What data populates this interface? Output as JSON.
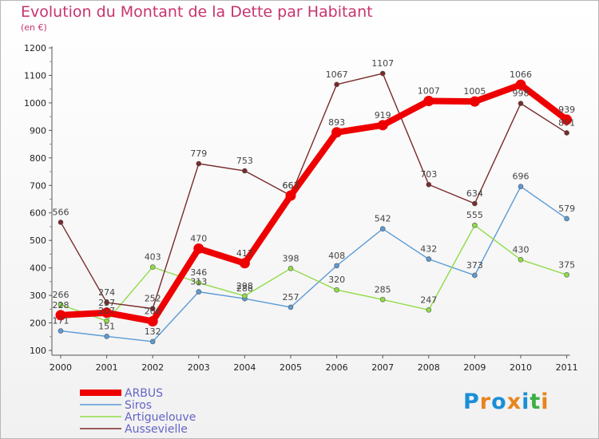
{
  "title": "Evolution du Montant de la Dette par Habitant",
  "subtitle": "(en €)",
  "logo": {
    "letters": [
      "P",
      "r",
      "o",
      "x",
      "i",
      "t",
      "i"
    ],
    "colors": [
      "#1a8fd6",
      "#e8841c",
      "#1a8fd6",
      "#e8841c",
      "#1a8fd6",
      "#3cb043",
      "#e8841c"
    ]
  },
  "chart_data": {
    "type": "line",
    "title": "Evolution du Montant de la Dette par Habitant",
    "subtitle": "(en €)",
    "x": [
      "2000",
      "2001",
      "2002",
      "2003",
      "2004",
      "2005",
      "2006",
      "2007",
      "2008",
      "2009",
      "2010",
      "2011"
    ],
    "ylim": [
      100,
      1200
    ],
    "yticks": [
      100,
      200,
      300,
      400,
      500,
      600,
      700,
      800,
      900,
      1000,
      1100,
      1200
    ],
    "grid": false,
    "legend": "bottom-left",
    "series": [
      {
        "name": "ARBUS",
        "color": "#ee0000",
        "width": 8,
        "values": [
          228,
          237,
          206,
          470,
          417,
          663,
          893,
          919,
          1007,
          1005,
          1066,
          939
        ]
      },
      {
        "name": "Siros",
        "color": "#5b9bd5",
        "width": 1.4,
        "values": [
          171,
          151,
          132,
          313,
          288,
          257,
          408,
          542,
          432,
          373,
          696,
          579
        ]
      },
      {
        "name": "Artiguelouve",
        "color": "#8fdc46",
        "width": 1.4,
        "values": [
          266,
          207,
          403,
          346,
          298,
          398,
          320,
          285,
          247,
          555,
          430,
          375
        ]
      },
      {
        "name": "Aussevielle",
        "color": "#7a2a2a",
        "width": 1.4,
        "values": [
          566,
          274,
          252,
          779,
          753,
          663,
          1067,
          1107,
          703,
          634,
          998,
          891
        ]
      }
    ]
  }
}
